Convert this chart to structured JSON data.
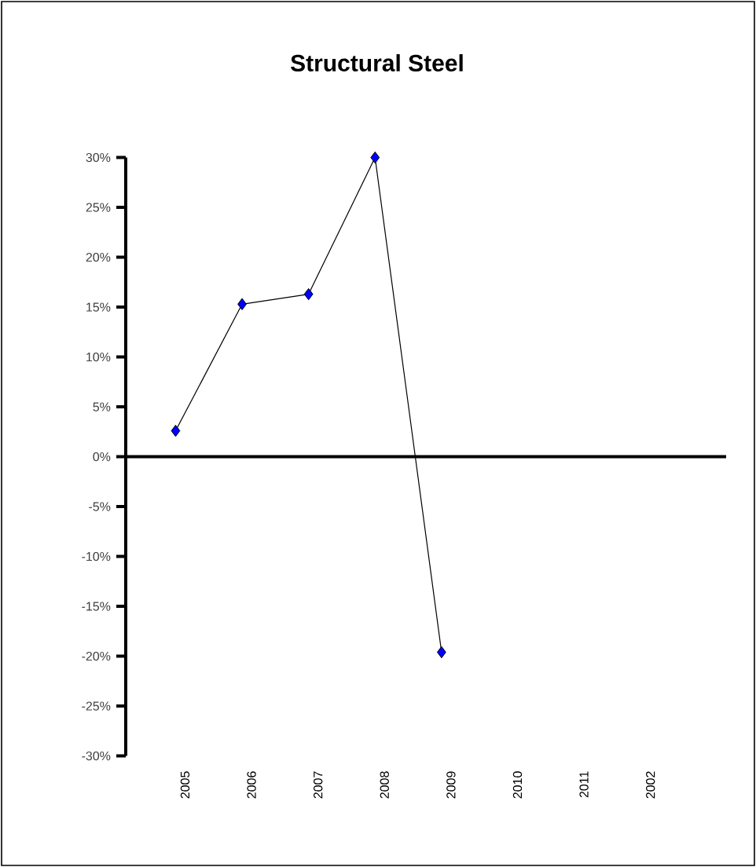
{
  "chart_data": {
    "type": "line",
    "title": "Structural Steel",
    "categories": [
      "2005",
      "2006",
      "2007",
      "2008",
      "2009",
      "2010",
      "2011",
      "2002"
    ],
    "series": [
      {
        "color": "#0000ff",
        "values": [
          2.6,
          15.3,
          16.3,
          30,
          -19.6,
          null,
          null,
          null
        ]
      }
    ],
    "ylim": [
      -30,
      30
    ],
    "yticks": [
      {
        "value": -30,
        "label": "-30%"
      },
      {
        "value": -25,
        "label": "-25%"
      },
      {
        "value": -20,
        "label": "-20%"
      },
      {
        "value": -15,
        "label": "-15%"
      },
      {
        "value": -10,
        "label": "-10%"
      },
      {
        "value": -5,
        "label": "-5%"
      },
      {
        "value": 0,
        "label": "0%"
      },
      {
        "value": 5,
        "label": "5%"
      },
      {
        "value": 10,
        "label": "10%"
      },
      {
        "value": 15,
        "label": "15%"
      },
      {
        "value": 20,
        "label": "20%"
      },
      {
        "value": 25,
        "label": "25%"
      },
      {
        "value": 30,
        "label": "30%"
      }
    ],
    "marker": "diamond",
    "line_style": "solid"
  }
}
